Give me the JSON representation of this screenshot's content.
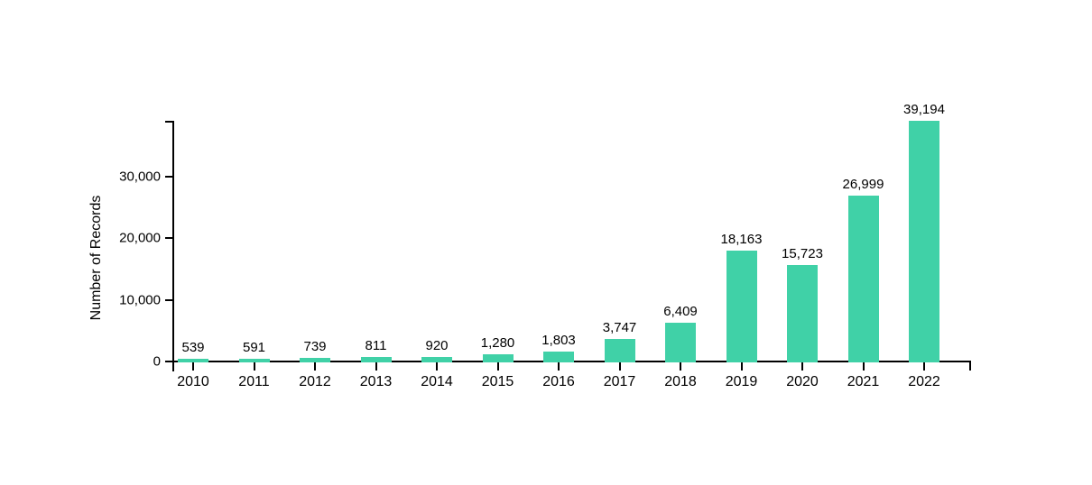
{
  "chart_data": {
    "type": "bar",
    "title": "",
    "xlabel": "",
    "ylabel": "Number of Records",
    "categories": [
      "2010",
      "2011",
      "2012",
      "2013",
      "2014",
      "2015",
      "2016",
      "2017",
      "2018",
      "2019",
      "2020",
      "2021",
      "2022"
    ],
    "values": [
      539,
      591,
      739,
      811,
      920,
      1280,
      1803,
      3747,
      6409,
      18163,
      15723,
      26999,
      39194
    ],
    "value_labels": [
      "539",
      "591",
      "739",
      "811",
      "920",
      "1,280",
      "1,803",
      "3,747",
      "6,409",
      "18,163",
      "15,723",
      "26,999",
      "39,194"
    ],
    "yticks": [
      0,
      10000,
      20000,
      30000
    ],
    "ytick_labels": [
      "0",
      "10,000",
      "20,000",
      "30,000"
    ],
    "ylim": [
      0,
      39194
    ],
    "grid": false,
    "legend": "none",
    "bar_color": "#40d1a7",
    "axis_color": "#000000",
    "text_color": "#000000"
  }
}
